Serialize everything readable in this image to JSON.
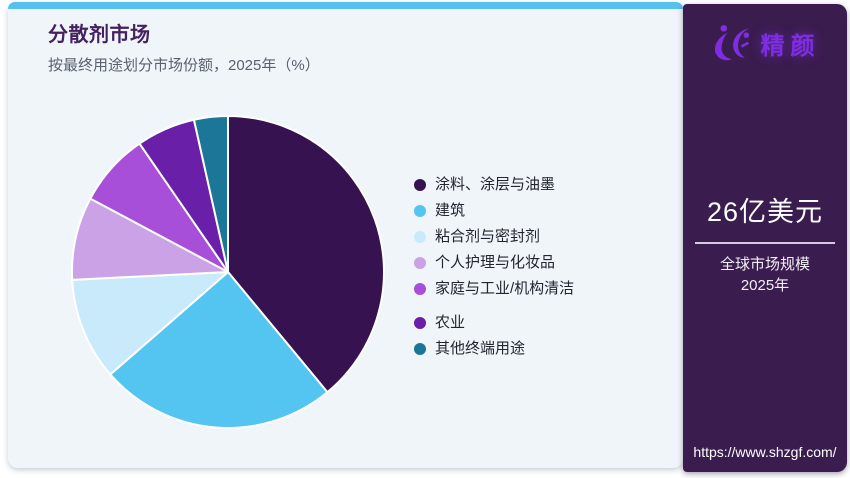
{
  "header": {
    "title": "分散剂市场",
    "subtitle": "按最终用途划分市场份额，2025年（%）"
  },
  "chart_data": {
    "type": "pie",
    "title": "分散剂市场 — 按最终用途划分市场份额，2025年（%）",
    "unit": "%",
    "start_angle_deg": 0,
    "direction": "clockwise",
    "categories": [
      "涂料、涂层与油墨",
      "建筑",
      "粘合剂与密封剂",
      "个人护理与化妆品",
      "家庭与工业/机构清洁",
      "农业",
      "其他终端用途"
    ],
    "values": [
      39,
      24.6,
      10.6,
      8.6,
      7.6,
      6.1,
      3.5
    ],
    "colors": [
      "#371250",
      "#53c5f0",
      "#c9eafb",
      "#cba2e6",
      "#a74fd8",
      "#6a1fa9",
      "#1b7697"
    ],
    "legend_position": "right",
    "legend_group_gap_before_index": 5,
    "slice_stroke": "#ffffff",
    "data_labels": false
  },
  "sidebar": {
    "brand": "精颜",
    "market_size": "26亿美元",
    "market_label": "全球市场规模",
    "market_year": "2025年",
    "url": "https://www.shzgf.com/"
  },
  "colors": {
    "accent_bar": "#55c1ec",
    "card_bg": "#f0f5fa",
    "sidebar_bg": "#3b1c4f",
    "title": "#44215f",
    "subtitle": "#59616e",
    "legend_text": "#23242f",
    "brand_purple": "#7d2ee0",
    "divider": "#e6dff0"
  }
}
